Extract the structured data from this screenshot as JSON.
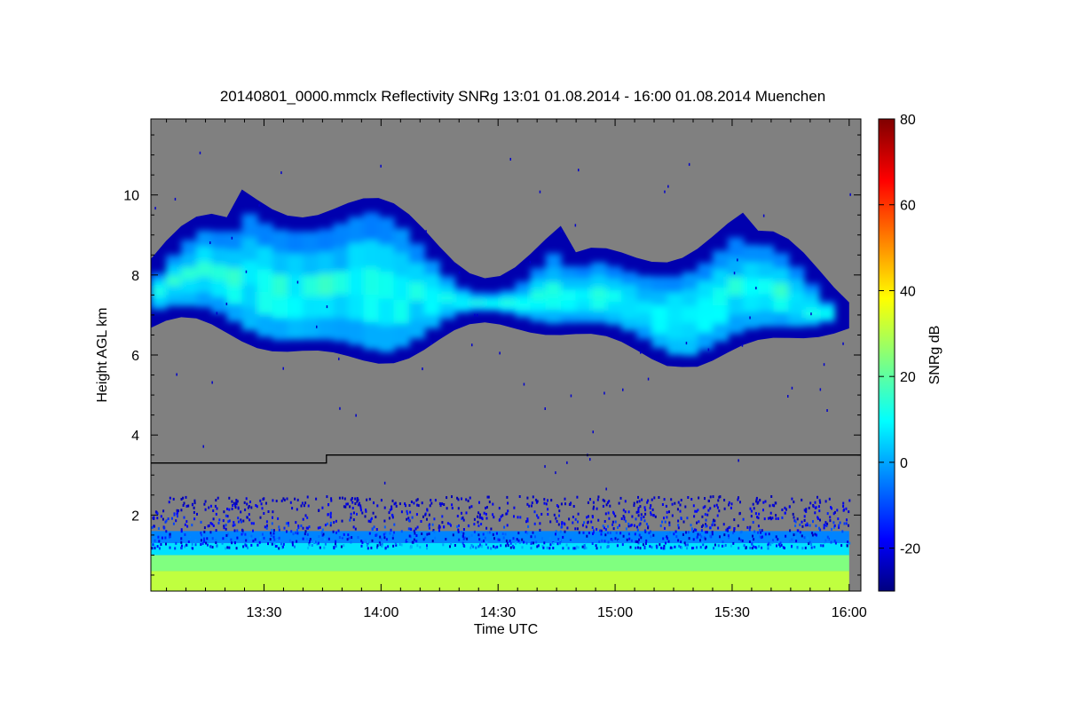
{
  "chart_data": {
    "type": "heatmap",
    "title": "20140801_0000.mmclx Reflectivity SNRg   13:01 01.08.2014 - 16:00 01.08.2014 Muenchen",
    "xlabel": "Time UTC",
    "ylabel": "Height AGL km",
    "xlim": [
      "13:01",
      "16:03"
    ],
    "ylim": [
      0.1,
      11.9
    ],
    "x_ticks": [
      "13:30",
      "14:00",
      "14:30",
      "15:00",
      "15:30",
      "16:00"
    ],
    "y_ticks": [
      "2",
      "4",
      "6",
      "8",
      "10"
    ],
    "colorbar": {
      "label": "SNRg dB",
      "range": [
        -30,
        80
      ],
      "ticks": [
        "-20",
        "0",
        "20",
        "40",
        "60",
        "80"
      ],
      "colormap": "jet"
    },
    "background_color": "#808080",
    "grid": false,
    "features": [
      {
        "name": "upper cloud layer",
        "time_range": [
          "13:01",
          "16:00"
        ],
        "base_km": 5.7,
        "top_km": 10.3,
        "snr_db_range": [
          -25,
          25
        ]
      },
      {
        "name": "boundary layer echo / clutter",
        "time_range": [
          "13:01",
          "16:00"
        ],
        "base_km": 0.1,
        "top_km": 2.5,
        "snr_db_range": [
          -25,
          35
        ]
      }
    ],
    "reference_line": {
      "description": "step line",
      "points": [
        {
          "time": "13:01",
          "height_km": 3.3
        },
        {
          "time": "13:46",
          "height_km": 3.3
        },
        {
          "time": "13:46",
          "height_km": 3.5
        },
        {
          "time": "16:03",
          "height_km": 3.5
        }
      ]
    }
  }
}
